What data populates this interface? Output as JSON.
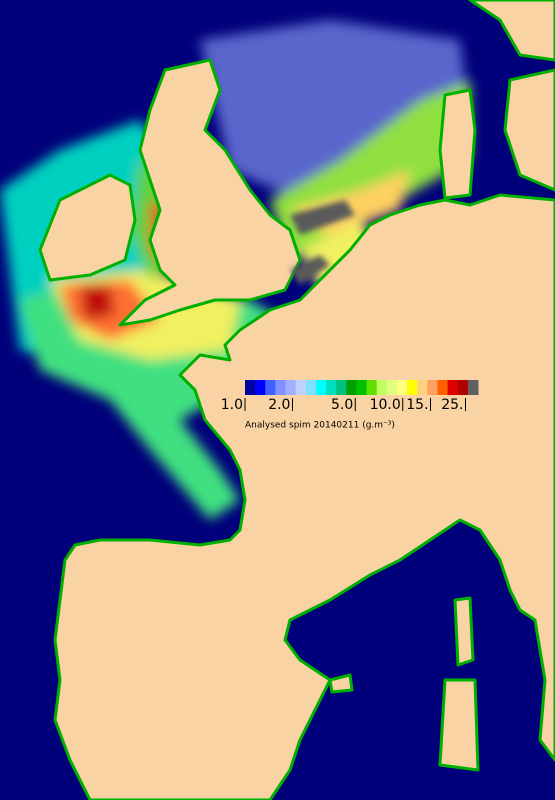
{
  "legend": {
    "caption": "Analysed spim 20140211 (g.m⁻³)",
    "log": true,
    "lim": [
      1,
      30
    ],
    "ticks": [
      {
        "value": 1,
        "label": "1.0"
      },
      {
        "value": 2,
        "label": "2.0"
      },
      {
        "value": 5,
        "label": "5.0"
      },
      {
        "value": 10,
        "label": "10.0"
      },
      {
        "value": 15,
        "label": "15."
      },
      {
        "value": 25,
        "label": "25."
      }
    ],
    "colors": [
      "#0000a0",
      "#0000ff",
      "#4060ff",
      "#8090ff",
      "#a0b0ff",
      "#c0d0ff",
      "#80e0ff",
      "#00ffff",
      "#00e0c0",
      "#00c080",
      "#00a000",
      "#00c000",
      "#60e000",
      "#c0ff60",
      "#e0ff80",
      "#ffff80",
      "#ffff00",
      "#ffd080",
      "#ffa060",
      "#ff6000",
      "#e00000",
      "#b00000",
      "#606060"
    ]
  }
}
